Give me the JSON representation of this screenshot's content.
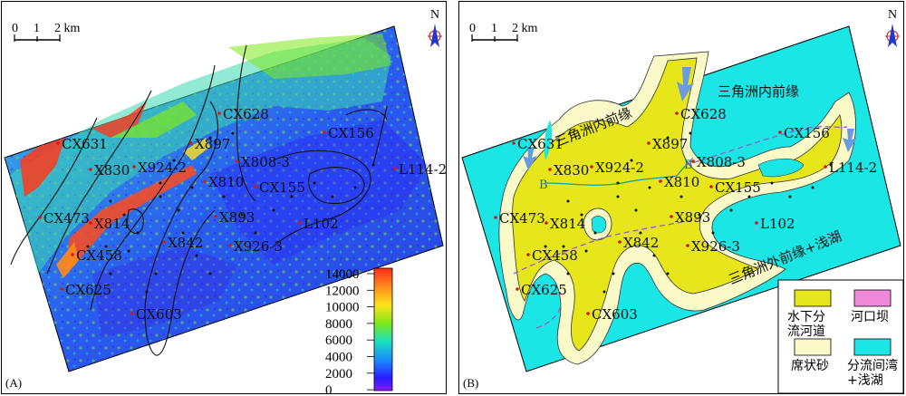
{
  "panel_a": {
    "label": "(A)",
    "scale_bar": {
      "ticks": [
        "0",
        "1",
        "2 km"
      ]
    },
    "north": "N",
    "colorbar": {
      "ticks": [
        "14000",
        "12000",
        "10000",
        "8000",
        "6000",
        "4000",
        "2000",
        "0"
      ],
      "colors": [
        "#ff2a1a",
        "#ff8a1a",
        "#ffe21a",
        "#7ee81a",
        "#1ae0c0",
        "#1a8cff",
        "#2a1aff",
        "#8a1aff"
      ]
    },
    "wells": [
      "CX631",
      "X830",
      "X924-2",
      "X897",
      "CX628",
      "X808-3",
      "X810",
      "CX155",
      "CX156",
      "L114-2",
      "CX473",
      "X814",
      "X893",
      "L102",
      "X842",
      "X926-3",
      "CX458",
      "CX625",
      "CX603"
    ]
  },
  "panel_b": {
    "label": "(B)",
    "scale_bar": {
      "ticks": [
        "0",
        "1",
        "2 km"
      ]
    },
    "north": "N",
    "zones": {
      "inner_front_left": "三角洲内前缘",
      "inner_front_top": "三角洲内前缘",
      "outer_front": "三角洲外前缘+浅湖"
    },
    "section_labels": {
      "b_left": "B",
      "b_right": "B'"
    },
    "wells": [
      "CX631",
      "X830",
      "X924-2",
      "X897",
      "CX628",
      "X808-3",
      "X810",
      "CX155",
      "CX156",
      "L114-2",
      "CX473",
      "X814",
      "X893",
      "L102",
      "X842",
      "X926-3",
      "CX458",
      "CX625",
      "CX603"
    ],
    "legend": [
      {
        "label": "水下分流河道",
        "color": "#e6e61a"
      },
      {
        "label": "河口坝",
        "color": "#f08ad8"
      },
      {
        "label": "席状砂",
        "color": "#fafac8"
      },
      {
        "label": "分流间湾+浅湖",
        "color": "#1ae6e6"
      }
    ]
  }
}
